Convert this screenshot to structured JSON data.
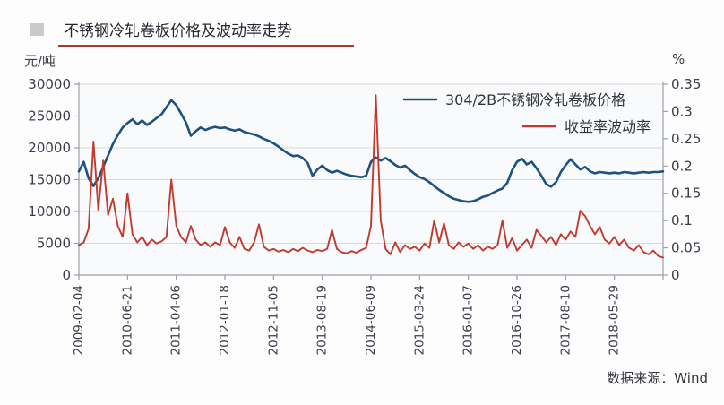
{
  "title": "不锈钢冷轧卷板价格及波动率走势",
  "source_note": "数据来源：Wind",
  "colors": {
    "price_line": "#1d517f",
    "volatility_line": "#c03a30",
    "grid": "#d9d9d9",
    "axis": "#98a0a8",
    "label_text": "#3d3d49",
    "title_underline": "#a23a31",
    "title_bullet": "#c9c9ce",
    "plot_background": "#f8fafc"
  },
  "chart_data": {
    "type": "line",
    "title": "不锈钢冷轧卷板价格及波动率走势",
    "grid": "horizontal",
    "legend_position": "upper-right",
    "left_axis": {
      "label": "元/吨",
      "min": 0,
      "max": 30000,
      "ticks": [
        0,
        5000,
        10000,
        15000,
        20000,
        25000,
        30000
      ]
    },
    "right_axis": {
      "label": "%",
      "min": 0,
      "max": 0.35,
      "ticks": [
        0,
        0.05,
        0.1,
        0.15,
        0.2,
        0.25,
        0.3,
        0.35
      ]
    },
    "x_tick_labels": [
      "2009-02-04",
      "2010-06-21",
      "2011-04-06",
      "2012-01-18",
      "2012-11-05",
      "2013-08-19",
      "2014-06-09",
      "2015-03-24",
      "2016-01-07",
      "2016-10-26",
      "2017-08-10",
      "2018-05-29"
    ],
    "legend": [
      {
        "name": "304/2B不锈钢冷轧卷板价格",
        "color": "#1d517f"
      },
      {
        "name": "收益率波动率",
        "color": "#c03a30"
      }
    ],
    "series": [
      {
        "name": "304/2B不锈钢冷轧卷板价格",
        "axis": "left",
        "unit": "元/吨",
        "values": [
          16300,
          17800,
          15200,
          14000,
          15200,
          17000,
          18800,
          20600,
          22000,
          23200,
          23900,
          24500,
          23700,
          24300,
          23600,
          24100,
          24700,
          25300,
          26400,
          27500,
          26700,
          25400,
          24000,
          21900,
          22600,
          23200,
          22800,
          23100,
          23300,
          23100,
          23200,
          22900,
          22700,
          22900,
          22500,
          22300,
          22100,
          21800,
          21400,
          21100,
          20700,
          20200,
          19600,
          19100,
          18700,
          18800,
          18400,
          17600,
          15600,
          16600,
          17200,
          16500,
          16100,
          16400,
          16100,
          15800,
          15600,
          15500,
          15400,
          15600,
          17800,
          18500,
          18000,
          18400,
          17900,
          17300,
          16900,
          17200,
          16500,
          15900,
          15400,
          15100,
          14600,
          14000,
          13400,
          12900,
          12400,
          12000,
          11800,
          11600,
          11500,
          11600,
          11900,
          12300,
          12500,
          12900,
          13300,
          13600,
          14500,
          16500,
          17800,
          18300,
          17400,
          17800,
          16800,
          15600,
          14300,
          13900,
          14600,
          16200,
          17300,
          18200,
          17400,
          16600,
          17000,
          16300,
          16000,
          16200,
          16100,
          16000,
          16100,
          16000,
          16200,
          16100,
          16000,
          16100,
          16200,
          16100,
          16200,
          16200,
          16300
        ]
      },
      {
        "name": "收益率波动率",
        "axis": "right",
        "unit": "%",
        "values": [
          0.055,
          0.06,
          0.085,
          0.245,
          0.12,
          0.21,
          0.11,
          0.14,
          0.09,
          0.07,
          0.15,
          0.075,
          0.06,
          0.07,
          0.055,
          0.065,
          0.058,
          0.062,
          0.07,
          0.175,
          0.09,
          0.07,
          0.06,
          0.09,
          0.065,
          0.055,
          0.06,
          0.052,
          0.06,
          0.055,
          0.088,
          0.06,
          0.05,
          0.07,
          0.048,
          0.045,
          0.06,
          0.093,
          0.052,
          0.045,
          0.048,
          0.043,
          0.046,
          0.042,
          0.048,
          0.044,
          0.05,
          0.045,
          0.042,
          0.046,
          0.044,
          0.048,
          0.083,
          0.048,
          0.042,
          0.04,
          0.044,
          0.041,
          0.046,
          0.05,
          0.09,
          0.33,
          0.1,
          0.048,
          0.038,
          0.06,
          0.042,
          0.055,
          0.048,
          0.052,
          0.045,
          0.058,
          0.05,
          0.1,
          0.06,
          0.095,
          0.055,
          0.048,
          0.06,
          0.052,
          0.058,
          0.048,
          0.055,
          0.045,
          0.052,
          0.048,
          0.055,
          0.1,
          0.05,
          0.068,
          0.045,
          0.055,
          0.065,
          0.05,
          0.083,
          0.072,
          0.06,
          0.07,
          0.055,
          0.075,
          0.065,
          0.08,
          0.07,
          0.118,
          0.108,
          0.09,
          0.075,
          0.088,
          0.065,
          0.058,
          0.07,
          0.055,
          0.065,
          0.05,
          0.045,
          0.055,
          0.042,
          0.038,
          0.045,
          0.035,
          0.032
        ]
      }
    ]
  }
}
